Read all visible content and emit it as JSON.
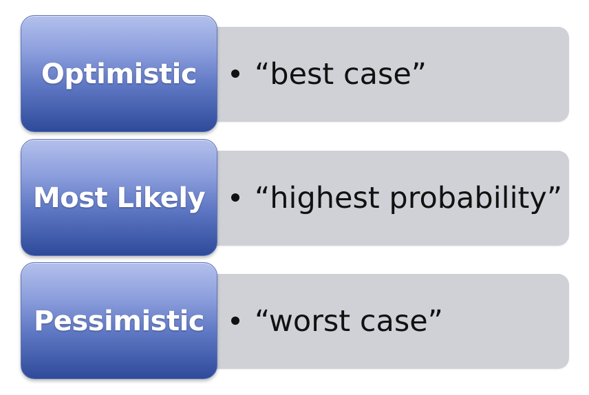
{
  "rows": [
    {
      "label": "Optimistic",
      "description": "“best case”"
    },
    {
      "label": "Most Likely",
      "description": "“highest probability”"
    },
    {
      "label": "Pessimistic",
      "description": "“worst case”"
    }
  ]
}
